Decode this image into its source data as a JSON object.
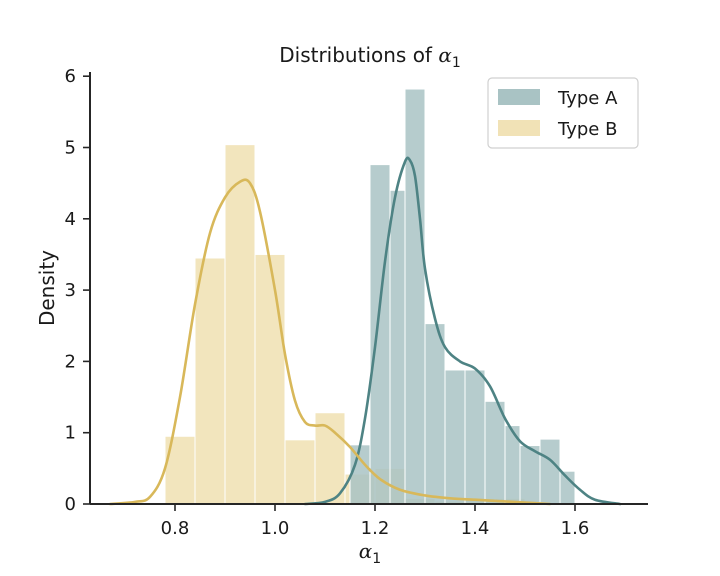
{
  "chart_data": {
    "type": "histogram",
    "title": "Distributions of α",
    "title_subscript": "1",
    "xlabel": "α",
    "xlabel_subscript": "1",
    "ylabel": "Density",
    "xlim": [
      0.65,
      1.75
    ],
    "ylim": [
      0,
      6.1
    ],
    "xticks": [
      "0.8",
      "1.0",
      "1.2",
      "1.4",
      "1.6"
    ],
    "xtick_values": [
      0.8,
      1.0,
      1.2,
      1.4,
      1.6
    ],
    "yticks": [
      "0",
      "1",
      "2",
      "3",
      "4",
      "5",
      "6"
    ],
    "ytick_values": [
      0,
      1,
      2,
      3,
      4,
      5,
      6
    ],
    "grid": false,
    "legend_position": "top-right",
    "series": [
      {
        "name": "Type A",
        "hist_color": "#a9c3c4",
        "kde_color": "#4e8384",
        "bins": [
          {
            "x0": 1.15,
            "x1": 1.19,
            "density": 0.83
          },
          {
            "x0": 1.19,
            "x1": 1.23,
            "density": 4.76
          },
          {
            "x0": 1.23,
            "x1": 1.26,
            "density": 4.4
          },
          {
            "x0": 1.26,
            "x1": 1.3,
            "density": 5.82
          },
          {
            "x0": 1.3,
            "x1": 1.34,
            "density": 2.53
          },
          {
            "x0": 1.34,
            "x1": 1.38,
            "density": 1.88
          },
          {
            "x0": 1.38,
            "x1": 1.42,
            "density": 1.88
          },
          {
            "x0": 1.42,
            "x1": 1.46,
            "density": 1.44
          },
          {
            "x0": 1.46,
            "x1": 1.49,
            "density": 1.1
          },
          {
            "x0": 1.49,
            "x1": 1.53,
            "density": 0.82
          },
          {
            "x0": 1.53,
            "x1": 1.57,
            "density": 0.91
          },
          {
            "x0": 1.57,
            "x1": 1.6,
            "density": 0.46
          }
        ],
        "kde": [
          [
            1.06,
            0.0
          ],
          [
            1.1,
            0.03
          ],
          [
            1.13,
            0.15
          ],
          [
            1.16,
            0.55
          ],
          [
            1.18,
            1.2
          ],
          [
            1.2,
            2.2
          ],
          [
            1.22,
            3.4
          ],
          [
            1.24,
            4.3
          ],
          [
            1.26,
            4.8
          ],
          [
            1.27,
            4.82
          ],
          [
            1.28,
            4.6
          ],
          [
            1.29,
            4.0
          ],
          [
            1.3,
            3.3
          ],
          [
            1.32,
            2.6
          ],
          [
            1.34,
            2.2
          ],
          [
            1.37,
            2.0
          ],
          [
            1.4,
            1.9
          ],
          [
            1.43,
            1.65
          ],
          [
            1.46,
            1.2
          ],
          [
            1.49,
            0.88
          ],
          [
            1.52,
            0.74
          ],
          [
            1.55,
            0.62
          ],
          [
            1.58,
            0.4
          ],
          [
            1.61,
            0.2
          ],
          [
            1.64,
            0.06
          ],
          [
            1.69,
            0.0
          ]
        ]
      },
      {
        "name": "Type B",
        "hist_color": "#f1e2b6",
        "kde_color": "#d8b85a",
        "bins": [
          {
            "x0": 0.78,
            "x1": 0.84,
            "density": 0.95
          },
          {
            "x0": 0.84,
            "x1": 0.9,
            "density": 3.45
          },
          {
            "x0": 0.9,
            "x1": 0.96,
            "density": 5.04
          },
          {
            "x0": 0.96,
            "x1": 1.02,
            "density": 3.5
          },
          {
            "x0": 1.02,
            "x1": 1.08,
            "density": 0.9
          },
          {
            "x0": 1.08,
            "x1": 1.14,
            "density": 1.28
          },
          {
            "x0": 1.14,
            "x1": 1.2,
            "density": 0.42
          },
          {
            "x0": 1.2,
            "x1": 1.26,
            "density": 0.5
          },
          {
            "x0": 1.26,
            "x1": 1.32,
            "density": 0.08
          },
          {
            "x0": 1.32,
            "x1": 1.38,
            "density": 0.04
          },
          {
            "x0": 1.38,
            "x1": 1.44,
            "density": 0.08
          },
          {
            "x0": 1.44,
            "x1": 1.5,
            "density": 0.08
          }
        ],
        "kde": [
          [
            0.67,
            0.0
          ],
          [
            0.72,
            0.03
          ],
          [
            0.75,
            0.1
          ],
          [
            0.78,
            0.5
          ],
          [
            0.81,
            1.5
          ],
          [
            0.84,
            2.8
          ],
          [
            0.87,
            3.8
          ],
          [
            0.9,
            4.3
          ],
          [
            0.93,
            4.52
          ],
          [
            0.95,
            4.5
          ],
          [
            0.97,
            4.1
          ],
          [
            1.0,
            3.0
          ],
          [
            1.02,
            2.1
          ],
          [
            1.04,
            1.45
          ],
          [
            1.06,
            1.15
          ],
          [
            1.08,
            1.1
          ],
          [
            1.1,
            1.1
          ],
          [
            1.12,
            1.0
          ],
          [
            1.15,
            0.8
          ],
          [
            1.18,
            0.55
          ],
          [
            1.21,
            0.35
          ],
          [
            1.25,
            0.2
          ],
          [
            1.3,
            0.12
          ],
          [
            1.35,
            0.08
          ],
          [
            1.4,
            0.06
          ],
          [
            1.45,
            0.04
          ],
          [
            1.5,
            0.02
          ],
          [
            1.55,
            0.0
          ]
        ]
      }
    ]
  }
}
